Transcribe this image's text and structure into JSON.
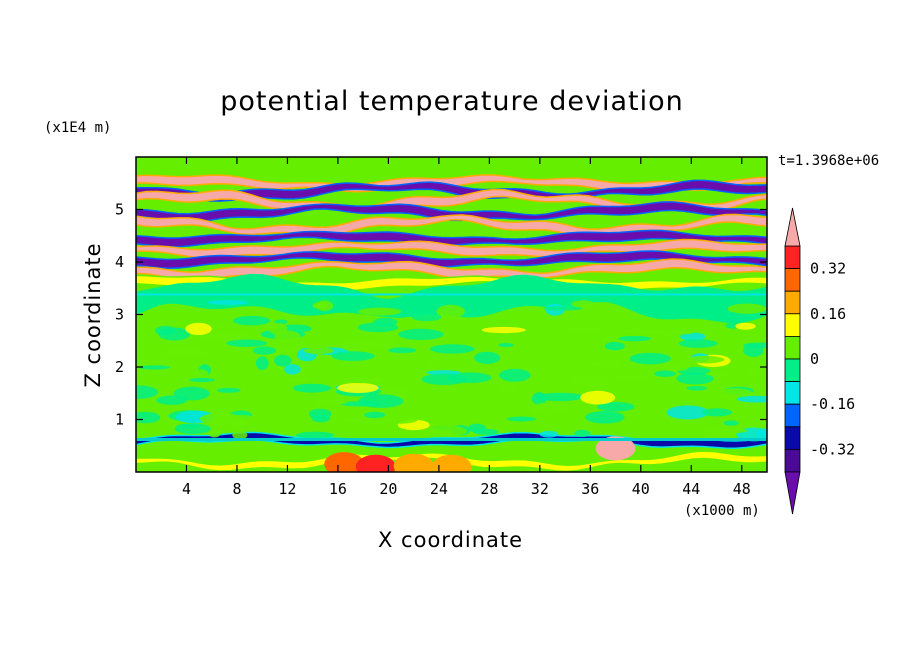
{
  "title": "potential temperature deviation",
  "time_label": "t=1.3968e+06",
  "chart_data": {
    "type": "heatmap",
    "title": "potential temperature deviation",
    "xlabel": "X coordinate",
    "ylabel": "Z coordinate",
    "x_multiplier": "(x1000 m)",
    "y_multiplier": "(x1E4 m)",
    "xlim": [
      0,
      50
    ],
    "ylim": [
      0,
      6
    ],
    "x_ticks": [
      4,
      8,
      12,
      16,
      20,
      24,
      28,
      32,
      36,
      40,
      44,
      48
    ],
    "y_ticks": [
      1,
      2,
      3,
      4,
      5
    ],
    "colorbar": {
      "levels": [
        -0.48,
        -0.4,
        -0.32,
        -0.24,
        -0.16,
        -0.08,
        0,
        0.08,
        0.16,
        0.24,
        0.32,
        0.4
      ],
      "tick_labels": [
        "0.32",
        "0.16",
        "0",
        "-0.16",
        "-0.32"
      ],
      "tick_values": [
        0.32,
        0.16,
        0,
        -0.16,
        -0.32
      ],
      "colors": [
        "#6a0dad",
        "#4b0a96",
        "#0a0aaa",
        "#0064ff",
        "#00e5e5",
        "#00ee88",
        "#66ee00",
        "#ffff00",
        "#ffaa00",
        "#ff6600",
        "#ff2222",
        "#f7a8a8"
      ],
      "extend": "both"
    },
    "bands": [
      {
        "z": 5.85,
        "value": 0.0
      },
      {
        "z": 5.5,
        "value": 0.4
      },
      {
        "z": 5.35,
        "value": -0.48
      },
      {
        "z": 5.15,
        "value": 0.4
      },
      {
        "z": 4.95,
        "value": -0.48
      },
      {
        "z": 4.7,
        "value": 0.4
      },
      {
        "z": 4.45,
        "value": -0.48
      },
      {
        "z": 4.25,
        "value": 0.4
      },
      {
        "z": 4.05,
        "value": -0.48
      },
      {
        "z": 3.85,
        "value": 0.4
      },
      {
        "z": 3.6,
        "value": 0.08
      },
      {
        "z": 3.3,
        "value": -0.08
      },
      {
        "z": 2.0,
        "value": 0.0
      },
      {
        "z": 0.6,
        "value": -0.32
      },
      {
        "z": 0.2,
        "value": 0.08
      }
    ]
  }
}
